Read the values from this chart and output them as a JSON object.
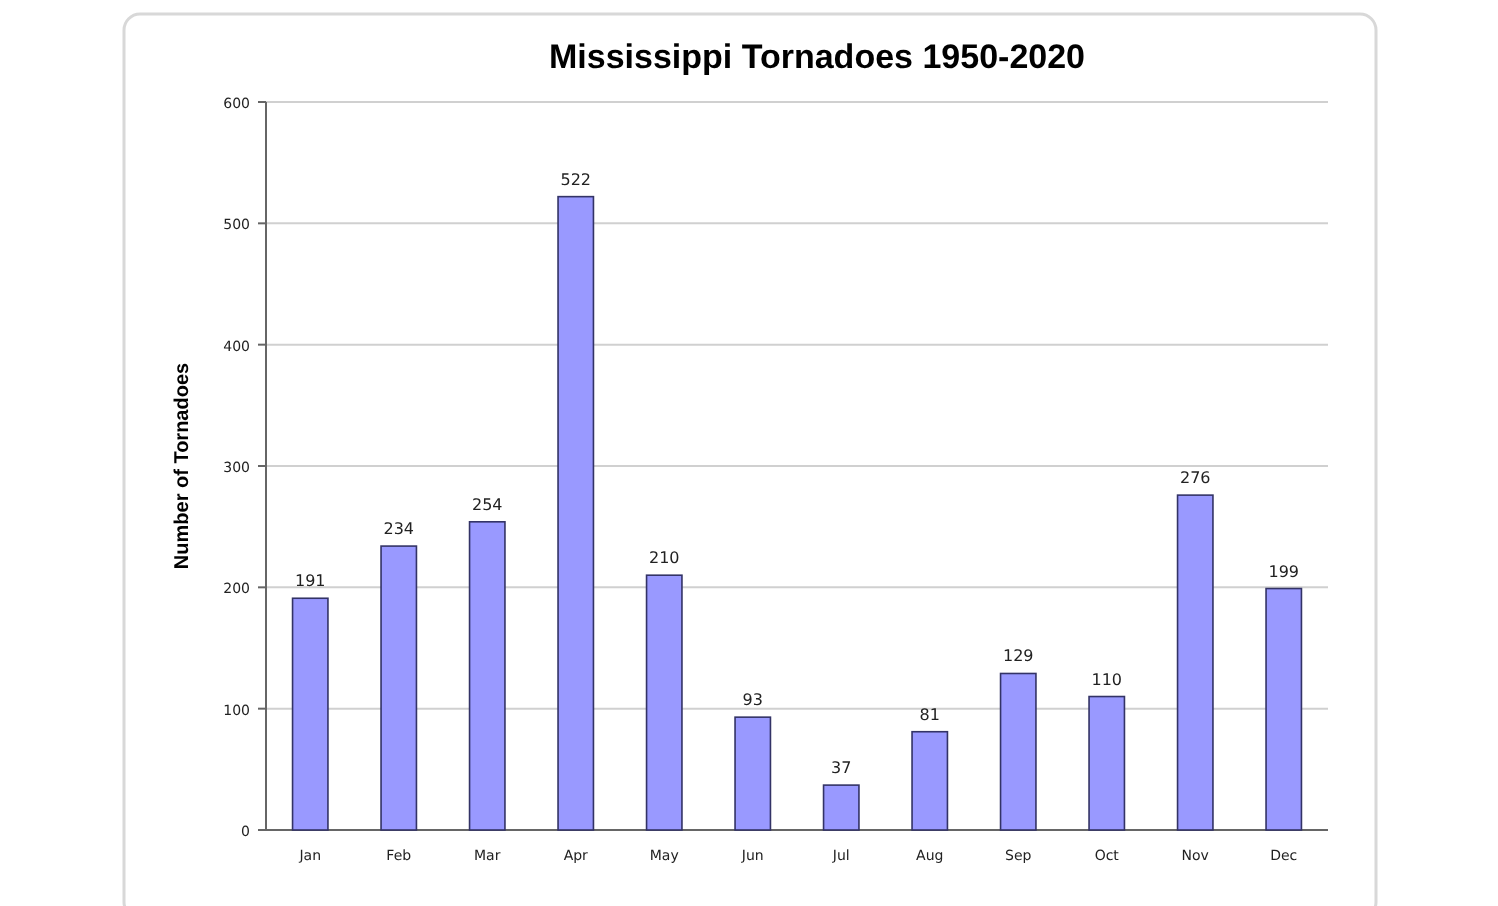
{
  "chart_data": {
    "type": "bar",
    "title": "Mississippi Tornadoes 1950-2020",
    "ylabel": "Number of Tornadoes",
    "categories": [
      "Jan",
      "Feb",
      "Mar",
      "Apr",
      "May",
      "Jun",
      "Jul",
      "Aug",
      "Sep",
      "Oct",
      "Nov",
      "Dec"
    ],
    "values": [
      191,
      234,
      254,
      522,
      210,
      93,
      37,
      81,
      129,
      110,
      276,
      199
    ],
    "color": "#9999ff",
    "ylim": [
      0,
      600
    ],
    "yticks": [
      0,
      100,
      200,
      300,
      400,
      500,
      600
    ],
    "grid": "y",
    "data_labels": true
  }
}
